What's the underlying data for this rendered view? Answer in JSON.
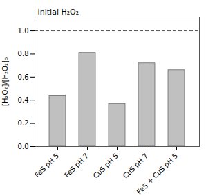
{
  "chart_data": {
    "type": "bar",
    "categories": [
      "FeS pH 5",
      "FeS pH 7",
      "CuS pH 5",
      "CuS pH 7",
      "FeS + CuS pH 5"
    ],
    "values": [
      0.44,
      0.81,
      0.37,
      0.72,
      0.66
    ],
    "color": "#c0c0c0",
    "ylabel": "[H₂O₂]/[H₂O₂]₀",
    "ylim": [
      0.0,
      1.12
    ],
    "yticks": [
      {
        "value": 0.0,
        "label": "0.0"
      },
      0.2,
      0.4,
      0.6,
      0.8,
      {
        "value": 1.0,
        "label": "1.0"
      }
    ],
    "annotations": [
      {
        "text": "Initial H₂O₂",
        "y": 1.0,
        "line_style": "dashed"
      }
    ],
    "grid": false
  }
}
